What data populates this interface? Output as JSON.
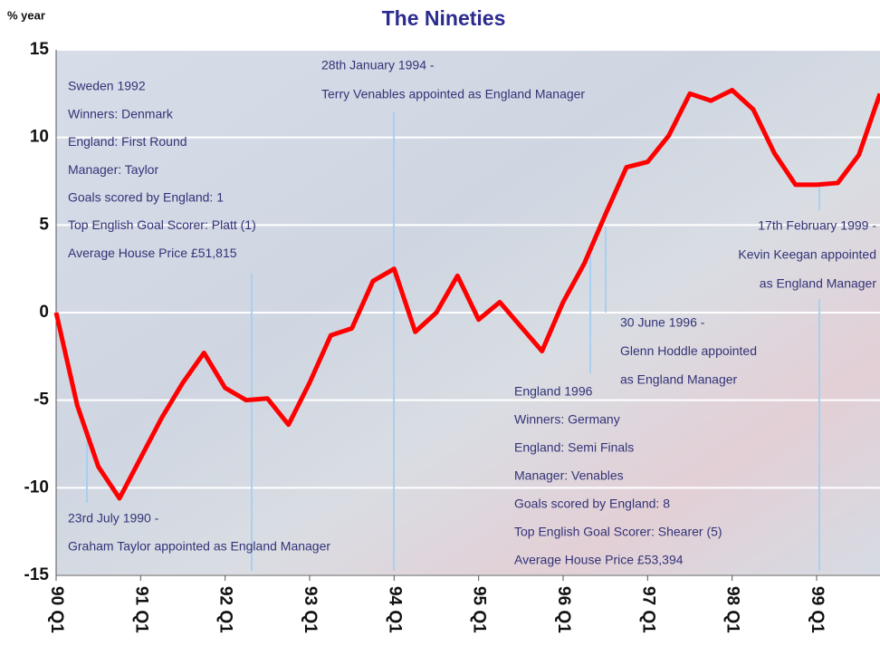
{
  "chart_data": {
    "type": "line",
    "title": "The Nineties",
    "y_axis_label": "% year",
    "categories": [
      "90 Q1",
      null,
      null,
      null,
      "91 Q1",
      null,
      null,
      null,
      "92 Q1",
      null,
      null,
      null,
      "93 Q1",
      null,
      null,
      null,
      "94 Q1",
      null,
      null,
      null,
      "95 Q1",
      null,
      null,
      null,
      "96 Q1",
      null,
      null,
      null,
      "97 Q1",
      null,
      null,
      null,
      "98 Q1",
      null,
      null,
      null,
      "99 Q1",
      null,
      null,
      null
    ],
    "series": [
      {
        "color": "#ff0000",
        "values": [
          0,
          -5.3,
          -8.8,
          -10.6,
          -8.3,
          -6,
          -4,
          -2.3,
          -4.3,
          -5,
          -4.9,
          -6.4,
          -4,
          -1.3,
          -0.9,
          1.8,
          2.5,
          -1.1,
          0,
          2.1,
          -0.4,
          0.6,
          -0.8,
          -2.2,
          0.6,
          2.8,
          5.6,
          8.3,
          8.6,
          10.1,
          12.5,
          12.1,
          12.7,
          11.6,
          9.1,
          7.3,
          7.3,
          7.4,
          9,
          12.5
        ]
      }
    ],
    "ylim": [
      -15,
      15
    ],
    "yticks": [
      -15,
      -10,
      -5,
      0,
      5,
      10,
      15
    ],
    "grid": true,
    "annotations": [
      [
        "Sweden 1992",
        "Winners: Denmark",
        "England: First Round",
        "Manager: Taylor",
        "Goals scored by England: 1",
        "Top English Goal Scorer: Platt (1)",
        "Average House Price £51,815"
      ],
      [
        "28th January 1994 -",
        "Terry Venables appointed as England Manager"
      ],
      [
        "17th February 1999 -",
        "Kevin Keegan appointed",
        "as England Manager"
      ],
      [
        "30 June 1996 -",
        "Glenn Hoddle appointed",
        "as England Manager"
      ],
      [
        "England 1996",
        "Winners: Germany",
        "England: Semi Finals",
        "Manager: Venables",
        "Goals scored by England: 8",
        "Top English Goal Scorer: Shearer (5)",
        "Average House Price £53,394"
      ],
      [
        "23rd July 1990 -",
        "Graham Taylor appointed as England Manager"
      ]
    ]
  }
}
